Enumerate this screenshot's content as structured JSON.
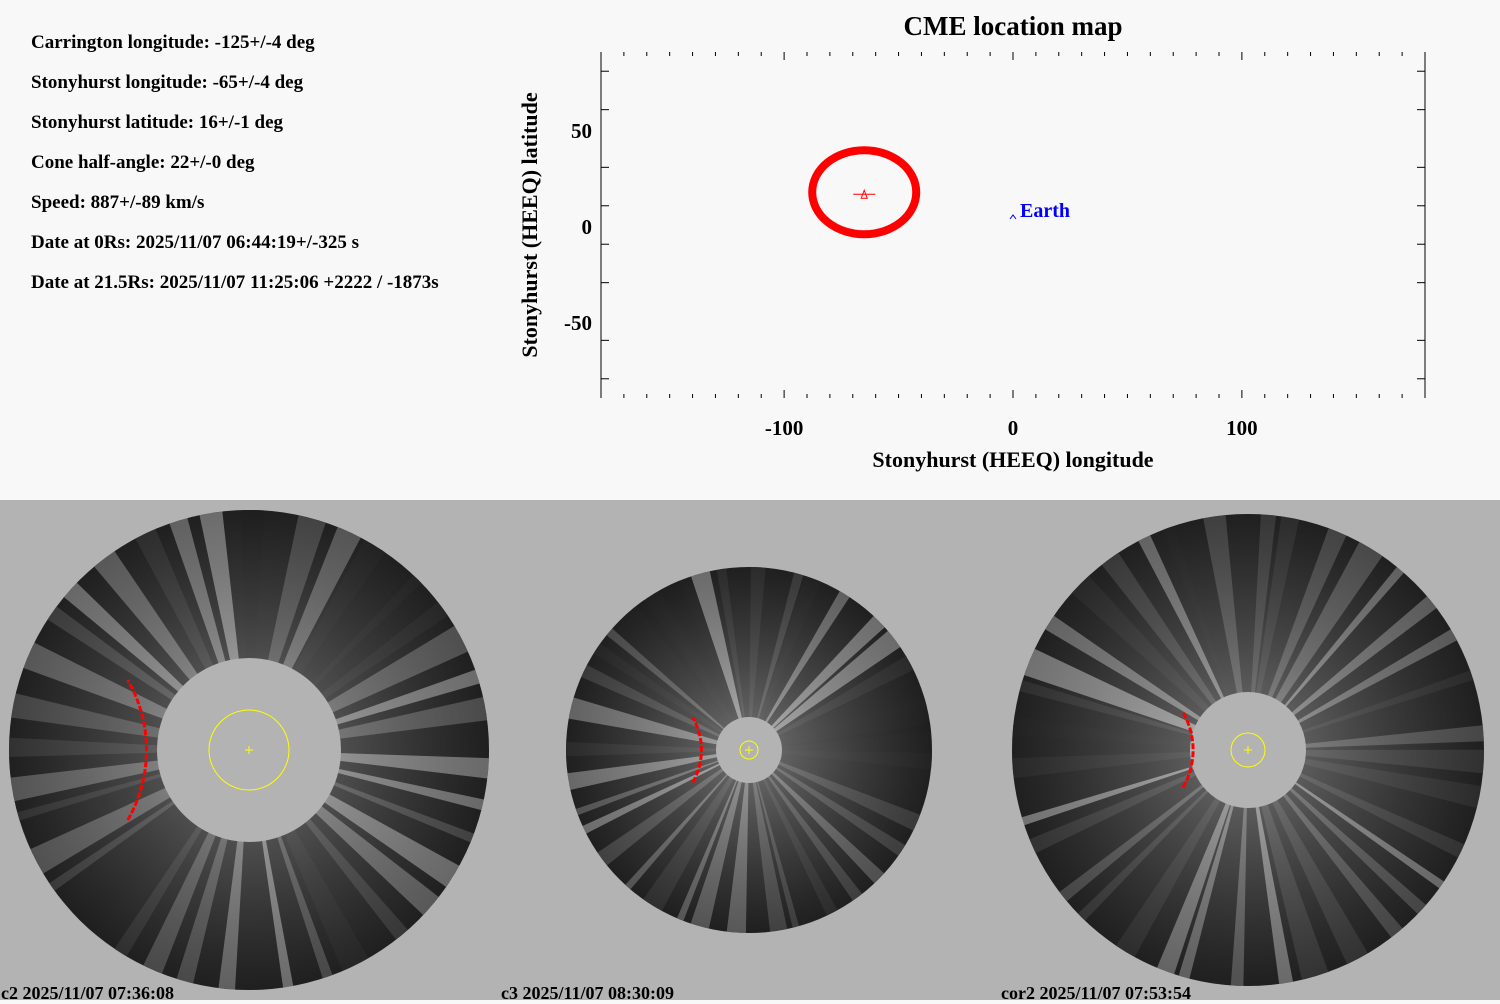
{
  "parameters": [
    "Carrington longitude: -125+/-4 deg",
    "Stonyhurst longitude: -65+/-4 deg",
    "Stonyhurst latitude: 16+/-1 deg",
    "Cone half-angle: 22+/-0 deg",
    "Speed: 887+/-89 km/s",
    "Date at 0Rs: 2025/11/07 06:44:19+/-325 s",
    "Date at 21.5Rs: 2025/11/07 11:25:06 +2222 / -1873s"
  ],
  "chart_data": {
    "type": "scatter",
    "title": "CME location map",
    "xlabel": "Stonyhurst (HEEQ) longitude",
    "ylabel": "Stonyhurst (HEEQ) latitude",
    "xlim": [
      -180,
      180
    ],
    "ylim": [
      -90,
      90
    ],
    "xticks": [
      -100,
      0,
      100
    ],
    "yticks": [
      50,
      0,
      -50
    ],
    "grid": false,
    "cme": {
      "lon": -65,
      "lat": 16,
      "half_angle": 22,
      "color": "#ff0000"
    },
    "earth": {
      "lon": 0,
      "lat": 0,
      "label": "Earth",
      "color": "#0000ff"
    }
  },
  "panels": [
    {
      "label": "c2 2025/11/07 07:36:08"
    },
    {
      "label": "c3 2025/11/07 08:30:09"
    },
    {
      "label": "cor2 2025/11/07 07:53:54"
    }
  ]
}
